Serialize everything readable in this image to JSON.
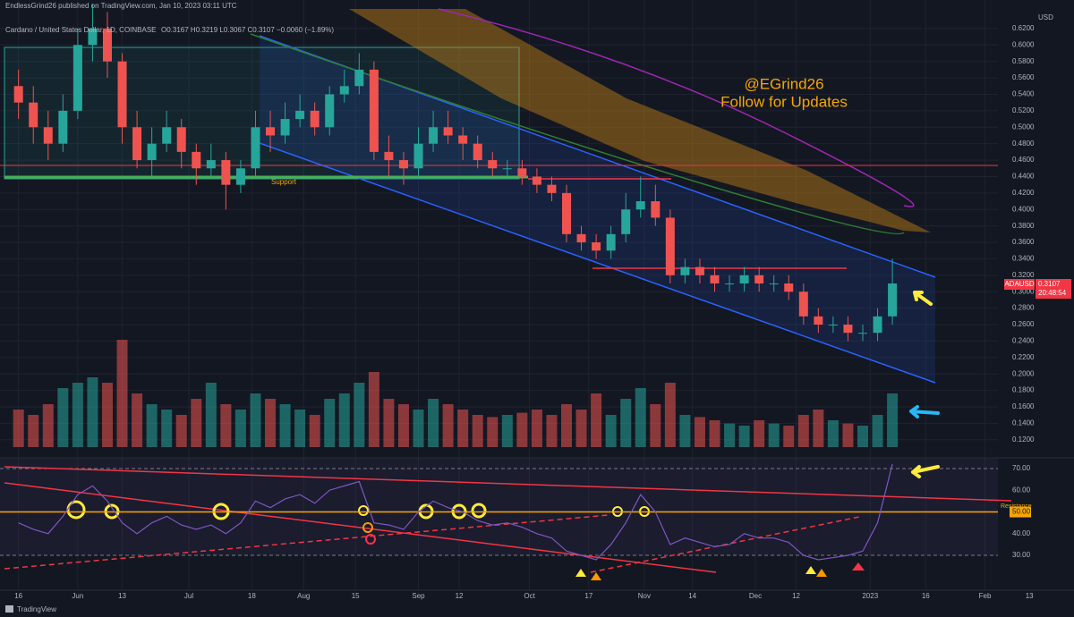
{
  "header": {
    "published": "EndlessGrind26 published on TradingView.com, Jan 10, 2023 03:11 UTC",
    "symbol": "Cardano / United States Dollar, 1D, COINBASE",
    "ohlc": "O0.3167 H0.3219 L0.3067 C0.3107 −0.0060 (−1.89%)"
  },
  "annotations": {
    "handle": "@EGrind26",
    "cta": "Follow for Updates",
    "support": "Support",
    "resistance": "Resistance"
  },
  "price_tag": {
    "symbol": "ADAUSD",
    "price": "0.3107",
    "countdown": "20:48:54"
  },
  "currency": "USD",
  "footer": "TradingView",
  "chart_data": [
    {
      "type": "candlestick",
      "up_color": "#26a69a",
      "down_color": "#ef5350",
      "grid": true,
      "x": [
        0,
        4,
        8,
        12,
        16,
        20,
        24,
        28,
        32,
        36,
        40,
        44,
        48,
        52,
        56,
        60,
        64,
        68,
        72,
        76,
        80,
        84,
        88,
        92,
        96,
        100,
        104,
        108,
        112,
        116,
        120,
        124,
        128,
        132,
        136,
        140,
        144,
        148,
        152,
        156,
        160,
        164,
        168,
        172,
        176,
        180,
        184,
        188,
        192,
        196,
        200,
        204,
        208,
        212,
        216,
        220,
        224,
        228,
        232,
        236
      ],
      "open": [
        0.55,
        0.53,
        0.5,
        0.48,
        0.52,
        0.6,
        0.62,
        0.58,
        0.5,
        0.46,
        0.48,
        0.5,
        0.47,
        0.45,
        0.46,
        0.43,
        0.45,
        0.5,
        0.49,
        0.51,
        0.52,
        0.5,
        0.54,
        0.55,
        0.57,
        0.47,
        0.46,
        0.45,
        0.48,
        0.5,
        0.49,
        0.48,
        0.46,
        0.45,
        0.45,
        0.44,
        0.43,
        0.42,
        0.37,
        0.36,
        0.35,
        0.37,
        0.4,
        0.41,
        0.39,
        0.32,
        0.33,
        0.32,
        0.31,
        0.31,
        0.32,
        0.31,
        0.31,
        0.3,
        0.27,
        0.26,
        0.26,
        0.25,
        0.25,
        0.27
      ],
      "high": [
        0.57,
        0.55,
        0.52,
        0.54,
        0.62,
        0.65,
        0.64,
        0.59,
        0.52,
        0.5,
        0.52,
        0.51,
        0.48,
        0.48,
        0.47,
        0.46,
        0.52,
        0.52,
        0.53,
        0.54,
        0.53,
        0.55,
        0.57,
        0.59,
        0.58,
        0.49,
        0.47,
        0.5,
        0.52,
        0.52,
        0.5,
        0.49,
        0.47,
        0.46,
        0.46,
        0.45,
        0.44,
        0.43,
        0.38,
        0.37,
        0.38,
        0.42,
        0.44,
        0.43,
        0.4,
        0.34,
        0.34,
        0.33,
        0.32,
        0.33,
        0.33,
        0.32,
        0.32,
        0.31,
        0.28,
        0.27,
        0.27,
        0.26,
        0.28,
        0.34
      ],
      "low": [
        0.51,
        0.48,
        0.46,
        0.47,
        0.51,
        0.58,
        0.56,
        0.48,
        0.45,
        0.44,
        0.47,
        0.45,
        0.43,
        0.44,
        0.4,
        0.42,
        0.44,
        0.47,
        0.48,
        0.5,
        0.49,
        0.49,
        0.53,
        0.54,
        0.46,
        0.44,
        0.43,
        0.44,
        0.47,
        0.48,
        0.46,
        0.45,
        0.44,
        0.44,
        0.43,
        0.42,
        0.41,
        0.36,
        0.35,
        0.34,
        0.34,
        0.36,
        0.39,
        0.38,
        0.31,
        0.31,
        0.31,
        0.3,
        0.3,
        0.3,
        0.3,
        0.3,
        0.29,
        0.26,
        0.25,
        0.25,
        0.24,
        0.24,
        0.24,
        0.26
      ],
      "close": [
        0.53,
        0.5,
        0.48,
        0.52,
        0.6,
        0.62,
        0.58,
        0.5,
        0.46,
        0.48,
        0.5,
        0.47,
        0.45,
        0.46,
        0.43,
        0.45,
        0.5,
        0.49,
        0.51,
        0.52,
        0.5,
        0.54,
        0.55,
        0.57,
        0.47,
        0.46,
        0.45,
        0.48,
        0.5,
        0.49,
        0.48,
        0.46,
        0.45,
        0.45,
        0.44,
        0.43,
        0.42,
        0.37,
        0.36,
        0.35,
        0.37,
        0.4,
        0.41,
        0.39,
        0.32,
        0.33,
        0.32,
        0.31,
        0.31,
        0.32,
        0.31,
        0.31,
        0.3,
        0.27,
        0.26,
        0.26,
        0.25,
        0.25,
        0.27,
        0.31
      ],
      "xlim": [
        -5,
        264.5
      ],
      "ylim": [
        0.098,
        0.646
      ],
      "yticks": [
        {
          "value": 0.12,
          "label": "0.1200"
        },
        {
          "value": 0.14,
          "label": "0.1400"
        },
        {
          "value": 0.16,
          "label": "0.1600"
        },
        {
          "value": 0.18,
          "label": "0.1800"
        },
        {
          "value": 0.2,
          "label": "0.2000"
        },
        {
          "value": 0.22,
          "label": "0.2200"
        },
        {
          "value": 0.24,
          "label": "0.2400"
        },
        {
          "value": 0.26,
          "label": "0.2600"
        },
        {
          "value": 0.28,
          "label": "0.2800"
        },
        {
          "value": 0.3,
          "label": "0.3000"
        },
        {
          "value": 0.32,
          "label": "0.3200"
        },
        {
          "value": 0.34,
          "label": "0.3400"
        },
        {
          "value": 0.36,
          "label": "0.3600"
        },
        {
          "value": 0.38,
          "label": "0.3800"
        },
        {
          "value": 0.4,
          "label": "0.4000"
        },
        {
          "value": 0.42,
          "label": "0.4200"
        },
        {
          "value": 0.44,
          "label": "0.4400"
        },
        {
          "value": 0.46,
          "label": "0.4600"
        },
        {
          "value": 0.48,
          "label": "0.4800"
        },
        {
          "value": 0.5,
          "label": "0.5000"
        },
        {
          "value": 0.52,
          "label": "0.5200"
        },
        {
          "value": 0.54,
          "label": "0.5400"
        },
        {
          "value": 0.56,
          "label": "0.5600"
        },
        {
          "value": 0.58,
          "label": "0.5800"
        },
        {
          "value": 0.6,
          "label": "0.6000"
        },
        {
          "value": 0.62,
          "label": "0.6200"
        }
      ],
      "xticks": [
        {
          "value": 0,
          "label": "16"
        },
        {
          "value": 16,
          "label": "Jun"
        },
        {
          "value": 28,
          "label": "13"
        },
        {
          "value": 46,
          "label": "Jul"
        },
        {
          "value": 63,
          "label": "18"
        },
        {
          "value": 77,
          "label": "Aug"
        },
        {
          "value": 91,
          "label": "15"
        },
        {
          "value": 108,
          "label": "Sep"
        },
        {
          "value": 119,
          "label": "12"
        },
        {
          "value": 138,
          "label": "Oct"
        },
        {
          "value": 154,
          "label": "17"
        },
        {
          "value": 169,
          "label": "Nov"
        },
        {
          "value": 182,
          "label": "14"
        },
        {
          "value": 199,
          "label": "Dec"
        },
        {
          "value": 210,
          "label": "12"
        },
        {
          "value": 230,
          "label": "2023"
        },
        {
          "value": 245,
          "label": "16"
        },
        {
          "value": 261,
          "label": "Feb"
        },
        {
          "value": 273,
          "label": "13"
        }
      ]
    },
    {
      "type": "bar",
      "up_color": "#26a69a",
      "down_color": "#ef5350",
      "x": [
        0,
        4,
        8,
        12,
        16,
        20,
        24,
        28,
        32,
        36,
        40,
        44,
        48,
        52,
        56,
        60,
        64,
        68,
        72,
        76,
        80,
        84,
        88,
        92,
        96,
        100,
        104,
        108,
        112,
        116,
        120,
        124,
        128,
        132,
        136,
        140,
        144,
        148,
        152,
        156,
        160,
        164,
        168,
        172,
        176,
        180,
        184,
        188,
        192,
        196,
        200,
        204,
        208,
        212,
        216,
        220,
        224,
        228,
        232,
        236
      ],
      "values": [
        35,
        30,
        40,
        55,
        60,
        65,
        60,
        100,
        50,
        40,
        35,
        30,
        45,
        60,
        40,
        35,
        50,
        45,
        40,
        35,
        30,
        45,
        50,
        60,
        70,
        45,
        40,
        35,
        45,
        40,
        35,
        30,
        28,
        30,
        32,
        35,
        30,
        40,
        35,
        50,
        30,
        45,
        55,
        40,
        60,
        30,
        28,
        25,
        22,
        20,
        25,
        22,
        20,
        30,
        35,
        25,
        22,
        20,
        30,
        50
      ],
      "xlim": [
        -5,
        264.5
      ],
      "ylim": [
        0,
        100
      ]
    },
    {
      "type": "line",
      "color": "#7e57c2",
      "highlight": {
        "value": 50,
        "color": "#f7a600"
      },
      "x": [
        0,
        4,
        8,
        12,
        16,
        20,
        24,
        28,
        32,
        36,
        40,
        44,
        48,
        52,
        56,
        60,
        64,
        68,
        72,
        76,
        80,
        84,
        88,
        92,
        96,
        100,
        104,
        108,
        112,
        116,
        120,
        124,
        128,
        132,
        136,
        140,
        144,
        148,
        152,
        156,
        160,
        164,
        168,
        172,
        176,
        180,
        184,
        188,
        192,
        196,
        200,
        204,
        208,
        212,
        216,
        220,
        224,
        228,
        232,
        236
      ],
      "values": [
        45,
        42,
        40,
        48,
        58,
        62,
        55,
        45,
        40,
        45,
        48,
        44,
        42,
        44,
        40,
        45,
        55,
        52,
        56,
        58,
        54,
        60,
        62,
        64,
        45,
        44,
        42,
        50,
        55,
        52,
        50,
        46,
        44,
        45,
        43,
        40,
        38,
        32,
        30,
        28,
        35,
        45,
        58,
        50,
        35,
        38,
        36,
        34,
        35,
        40,
        38,
        38,
        36,
        30,
        28,
        29,
        30,
        32,
        45,
        72
      ],
      "xlim": [
        -5,
        264.5
      ],
      "ylim": [
        14,
        74.5
      ],
      "yticks": [
        {
          "value": 30,
          "label": "30.00"
        },
        {
          "value": 40,
          "label": "40.00"
        },
        {
          "value": 50,
          "label": "50.00"
        },
        {
          "value": 60,
          "label": "60.00"
        },
        {
          "value": 70,
          "label": "70.00"
        }
      ]
    }
  ]
}
